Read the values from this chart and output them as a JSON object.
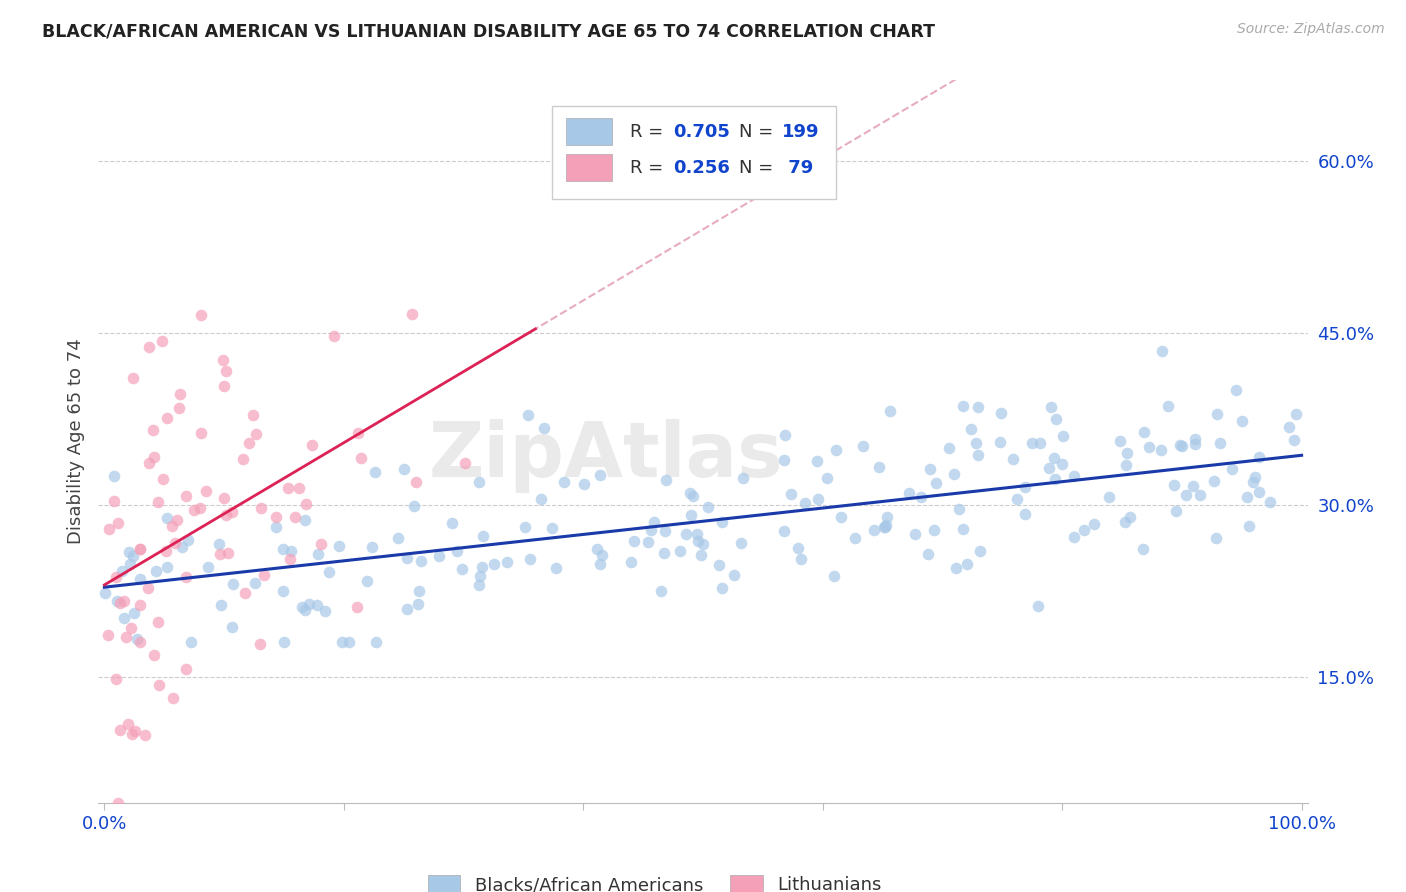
{
  "title": "BLACK/AFRICAN AMERICAN VS LITHUANIAN DISABILITY AGE 65 TO 74 CORRELATION CHART",
  "source": "Source: ZipAtlas.com",
  "ylabel": "Disability Age 65 to 74",
  "watermark": "ZipAtlas",
  "blue_R": 0.705,
  "blue_N": 199,
  "pink_R": 0.256,
  "pink_N": 79,
  "blue_color": "#a8c8e8",
  "pink_color": "#f4a0b8",
  "blue_line_color": "#1a3aaa",
  "pink_line_color": "#dd2255",
  "pink_dash_color": "#dd88aa",
  "title_color": "#222222",
  "axis_label_color": "#1144cc",
  "yticks": [
    0.15,
    0.3,
    0.45,
    0.6
  ],
  "ytick_labels": [
    "15.0%",
    "30.0%",
    "45.0%",
    "60.0%"
  ],
  "xtick_labels": [
    "0.0%",
    "",
    "",
    "",
    "",
    "100.0%"
  ],
  "blue_intercept": 0.228,
  "blue_slope": 0.115,
  "pink_intercept": 0.23,
  "pink_slope": 0.62,
  "pink_dash_intercept": 0.23,
  "pink_dash_slope": 0.62,
  "xmin": 0.0,
  "xmax": 1.0,
  "ymin": 0.04,
  "ymax": 0.67,
  "legend_label_blue": "Blacks/African Americans",
  "legend_label_pink": "Lithuanians"
}
